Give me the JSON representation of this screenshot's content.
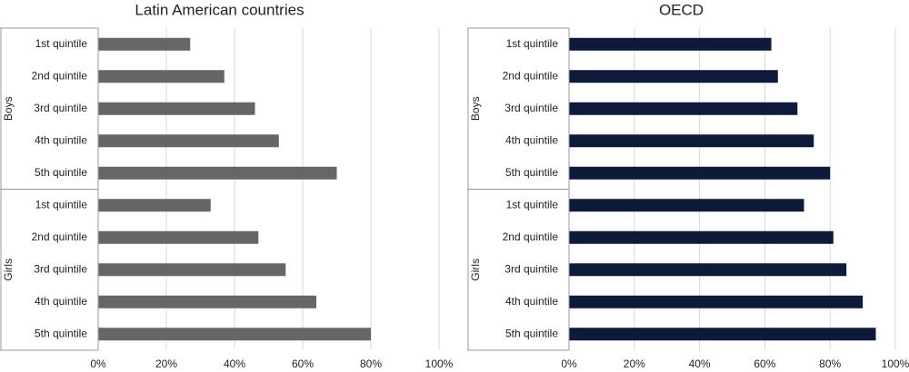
{
  "chart_data": [
    {
      "type": "bar",
      "orientation": "horizontal",
      "title": "Latin American countries",
      "color": "#666666",
      "xlim": [
        0,
        100
      ],
      "xticks": [
        {
          "value": 0,
          "label": "0%"
        },
        {
          "value": 20,
          "label": "20%"
        },
        {
          "value": 40,
          "label": "40%"
        },
        {
          "value": 60,
          "label": "60%"
        },
        {
          "value": 80,
          "label": "80%"
        },
        {
          "value": 100,
          "label": "100%"
        }
      ],
      "grid": true,
      "groups": [
        {
          "name": "Boys",
          "categories": [
            "1st quintile",
            "2nd quintile",
            "3rd quintile",
            "4th quintile",
            "5th quintile"
          ],
          "values": [
            27,
            37,
            46,
            53,
            70
          ]
        },
        {
          "name": "Girls",
          "categories": [
            "1st quintile",
            "2nd quintile",
            "3rd quintile",
            "4th quintile",
            "5th quintile"
          ],
          "values": [
            33,
            47,
            55,
            64,
            80
          ]
        }
      ]
    },
    {
      "type": "bar",
      "orientation": "horizontal",
      "title": "OECD",
      "color": "#0d1a3a",
      "xlim": [
        0,
        100
      ],
      "xticks": [
        {
          "value": 0,
          "label": "0%"
        },
        {
          "value": 20,
          "label": "20%"
        },
        {
          "value": 40,
          "label": "40%"
        },
        {
          "value": 60,
          "label": "60%"
        },
        {
          "value": 80,
          "label": "80%"
        },
        {
          "value": 100,
          "label": "100%"
        }
      ],
      "grid": true,
      "groups": [
        {
          "name": "Boys",
          "categories": [
            "1st quintile",
            "2nd quintile",
            "3rd quintile",
            "4th quintile",
            "5th quintile"
          ],
          "values": [
            62,
            64,
            70,
            75,
            80
          ]
        },
        {
          "name": "Girls",
          "categories": [
            "1st quintile",
            "2nd quintile",
            "3rd quintile",
            "4th quintile",
            "5th quintile"
          ],
          "values": [
            72,
            81,
            85,
            90,
            94
          ]
        }
      ]
    }
  ]
}
